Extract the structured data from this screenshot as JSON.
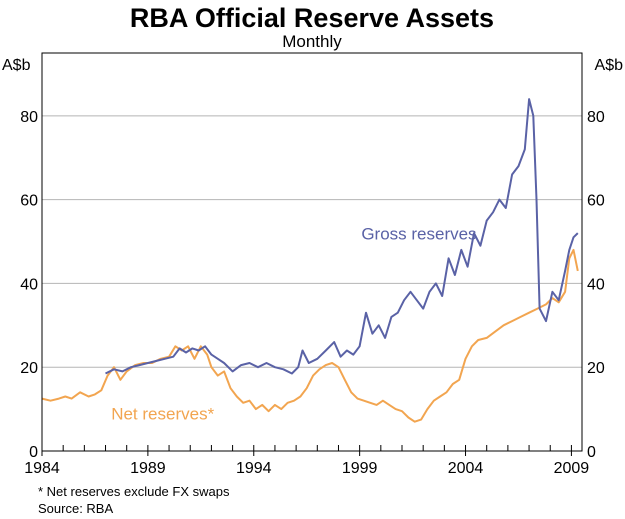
{
  "chart_data": {
    "type": "line",
    "title": "RBA Official Reserve Assets",
    "subtitle": "Monthly",
    "ylabel_left": "A$b",
    "ylabel_right": "A$b",
    "xlim": [
      1984,
      2009.5
    ],
    "ylim": [
      0,
      95
    ],
    "y_ticks": [
      0,
      20,
      40,
      60,
      80
    ],
    "x_ticks": [
      1984,
      1989,
      1994,
      1999,
      2004,
      2009
    ],
    "series": [
      {
        "name": "Gross reserves",
        "color": "#5a62a6",
        "x": [
          1987.0,
          1987.4,
          1987.8,
          1988.2,
          1988.6,
          1989.0,
          1989.4,
          1989.8,
          1990.2,
          1990.5,
          1990.8,
          1991.1,
          1991.4,
          1991.7,
          1992.0,
          1992.3,
          1992.6,
          1993.0,
          1993.4,
          1993.8,
          1994.2,
          1994.6,
          1995.0,
          1995.4,
          1995.8,
          1996.1,
          1996.3,
          1996.6,
          1997.0,
          1997.4,
          1997.8,
          1998.1,
          1998.4,
          1998.7,
          1999.0,
          1999.3,
          1999.6,
          1999.9,
          2000.2,
          2000.5,
          2000.8,
          2001.1,
          2001.4,
          2001.7,
          2002.0,
          2002.3,
          2002.6,
          2002.9,
          2003.2,
          2003.5,
          2003.8,
          2004.1,
          2004.4,
          2004.7,
          2005.0,
          2005.3,
          2005.6,
          2005.9,
          2006.2,
          2006.5,
          2006.8,
          2007.0,
          2007.2,
          2007.35,
          2007.5,
          2007.8,
          2008.1,
          2008.4,
          2008.7,
          2008.9,
          2009.1,
          2009.3
        ],
        "values": [
          18.5,
          19.5,
          19.0,
          20.0,
          20.5,
          21.0,
          21.5,
          22.0,
          22.5,
          24.5,
          23.5,
          24.5,
          24.0,
          25.0,
          23.0,
          22.0,
          21.0,
          19.0,
          20.5,
          21.0,
          20.0,
          21.0,
          20.0,
          19.5,
          18.5,
          20.0,
          24.0,
          21.0,
          22.0,
          24.0,
          26.0,
          22.5,
          24.0,
          23.0,
          25.0,
          33.0,
          28.0,
          30.0,
          27.0,
          32.0,
          33.0,
          36.0,
          38.0,
          36.0,
          34.0,
          38.0,
          40.0,
          37.0,
          46.0,
          42.0,
          48.0,
          44.0,
          52.0,
          49.0,
          55.0,
          57.0,
          60.0,
          58.0,
          66.0,
          68.0,
          72.0,
          84.0,
          80.0,
          60.0,
          34.0,
          31.0,
          38.0,
          36.0,
          43.0,
          48.0,
          51.0,
          52.0
        ]
      },
      {
        "name": "Net reserves*",
        "color": "#f2a550",
        "x": [
          1984.0,
          1984.4,
          1984.8,
          1985.1,
          1985.4,
          1985.8,
          1986.2,
          1986.5,
          1986.8,
          1987.1,
          1987.4,
          1987.7,
          1988.0,
          1988.4,
          1988.8,
          1989.2,
          1989.6,
          1990.0,
          1990.3,
          1990.6,
          1990.9,
          1991.2,
          1991.5,
          1991.8,
          1992.0,
          1992.3,
          1992.6,
          1992.9,
          1993.2,
          1993.5,
          1993.8,
          1994.1,
          1994.4,
          1994.7,
          1995.0,
          1995.3,
          1995.6,
          1995.9,
          1996.2,
          1996.5,
          1996.8,
          1997.1,
          1997.4,
          1997.7,
          1998.0,
          1998.3,
          1998.6,
          1998.9,
          1999.2,
          1999.5,
          1999.8,
          2000.1,
          2000.4,
          2000.7,
          2001.0,
          2001.3,
          2001.6,
          2001.9,
          2002.2,
          2002.5,
          2002.8,
          2003.1,
          2003.4,
          2003.7,
          2004.0,
          2004.3,
          2004.6,
          2005.0,
          2005.4,
          2005.8,
          2006.2,
          2006.6,
          2007.0,
          2007.4,
          2007.8,
          2008.1,
          2008.4,
          2008.7,
          2008.9,
          2009.1,
          2009.3
        ],
        "values": [
          12.5,
          12.0,
          12.5,
          13.0,
          12.5,
          14.0,
          13.0,
          13.5,
          14.5,
          18.0,
          20.0,
          17.0,
          19.0,
          20.5,
          21.0,
          21.0,
          22.0,
          22.5,
          25.0,
          24.0,
          25.0,
          22.0,
          25.0,
          23.0,
          20.0,
          18.0,
          19.0,
          15.0,
          13.0,
          11.5,
          12.0,
          10.0,
          11.0,
          9.5,
          11.0,
          10.0,
          11.5,
          12.0,
          13.0,
          15.0,
          18.0,
          19.5,
          20.5,
          21.0,
          20.0,
          17.0,
          14.0,
          12.5,
          12.0,
          11.5,
          11.0,
          12.0,
          11.0,
          10.0,
          9.5,
          8.0,
          7.0,
          7.5,
          10.0,
          12.0,
          13.0,
          14.0,
          16.0,
          17.0,
          22.0,
          25.0,
          26.5,
          27.0,
          28.5,
          30.0,
          31.0,
          32.0,
          33.0,
          34.0,
          35.0,
          36.5,
          35.5,
          38.0,
          46.0,
          48.0,
          43.0
        ]
      }
    ],
    "annotations": [
      {
        "text": "Gross reserves",
        "x": 2001.8,
        "y": 50.5,
        "color": "#5a62a6"
      },
      {
        "text": "Net reserves*",
        "x": 1989.7,
        "y": 7.5,
        "color": "#f2a550"
      }
    ],
    "footnote": "* Net reserves exclude FX swaps",
    "source": "Source: RBA",
    "grid": true
  }
}
